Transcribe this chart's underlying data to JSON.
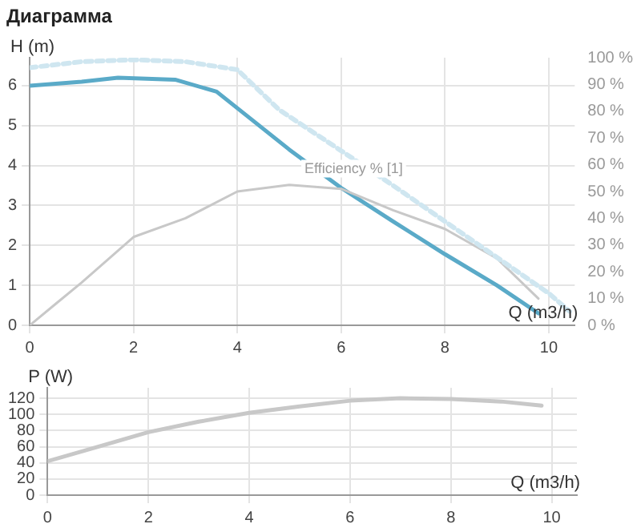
{
  "chart_data": [
    {
      "type": "line",
      "title": "Диаграмма",
      "xlabel": "Q (m3/h)",
      "ylabel": "H (m)",
      "xlim": [
        0,
        10.5
      ],
      "xticks": [
        0,
        2,
        4,
        6,
        8,
        10
      ],
      "ylim": [
        0,
        6.7
      ],
      "yticks": [
        0,
        1,
        2,
        3,
        4,
        5,
        6
      ],
      "y2lim": [
        0,
        100
      ],
      "y2ticks": [
        {
          "value": 0,
          "label": "0 %"
        },
        {
          "value": 10,
          "label": "10 %"
        },
        {
          "value": 20,
          "label": "20 %"
        },
        {
          "value": 30,
          "label": "30 %"
        },
        {
          "value": 40,
          "label": "40 %"
        },
        {
          "value": 50,
          "label": "50 %"
        },
        {
          "value": 60,
          "label": "60 %"
        },
        {
          "value": 70,
          "label": "70 %"
        },
        {
          "value": 80,
          "label": "80 %"
        },
        {
          "value": 90,
          "label": "90 %"
        },
        {
          "value": 100,
          "label": "100 %"
        }
      ],
      "grid": true,
      "legend": false,
      "marker": "none",
      "annotations": [
        {
          "text": "Efficiency % [1]",
          "x": 5.2,
          "y": 3.7
        }
      ],
      "series": [
        {
          "color": "#cfe6f0",
          "line_style": "dashed",
          "x": [
            0,
            1,
            2,
            3,
            4,
            4.8,
            6,
            7,
            8,
            9,
            10,
            10.4
          ],
          "values": [
            6.45,
            6.6,
            6.65,
            6.6,
            6.4,
            5.4,
            4.37,
            3.5,
            2.6,
            1.7,
            0.8,
            0.35
          ]
        },
        {
          "color": "#c8c8c8",
          "axis": "y2",
          "x": [
            0,
            0.5,
            1,
            2,
            3,
            4,
            5,
            6,
            7,
            8,
            9,
            9.8
          ],
          "values": [
            0,
            8,
            16,
            33,
            40,
            50,
            52.5,
            51,
            43,
            36,
            25,
            10
          ]
        },
        {
          "color": "#5aaac8",
          "x": [
            0,
            1,
            1.7,
            2.8,
            3.6,
            5,
            6,
            7,
            8,
            9,
            9.8
          ],
          "values": [
            6.0,
            6.1,
            6.2,
            6.15,
            5.85,
            4.4,
            3.44,
            2.6,
            1.78,
            1.0,
            0.3
          ]
        }
      ]
    },
    {
      "type": "line",
      "xlabel": "Q (m3/h)",
      "ylabel": "P (W)",
      "xlim": [
        0,
        10.5
      ],
      "xticks": [
        0,
        2,
        4,
        6,
        8,
        10
      ],
      "ylim": [
        0,
        133
      ],
      "yticks": [
        0,
        20,
        40,
        60,
        80,
        100,
        120
      ],
      "grid": true,
      "legend": false,
      "marker": "none",
      "series": [
        {
          "color": "#c8c8c8",
          "x": [
            0,
            1,
            2,
            3,
            4,
            5,
            6,
            7,
            8,
            9,
            9.8
          ],
          "values": [
            42,
            60,
            78,
            91,
            102,
            110,
            117,
            120,
            119,
            116,
            111
          ]
        }
      ]
    }
  ]
}
